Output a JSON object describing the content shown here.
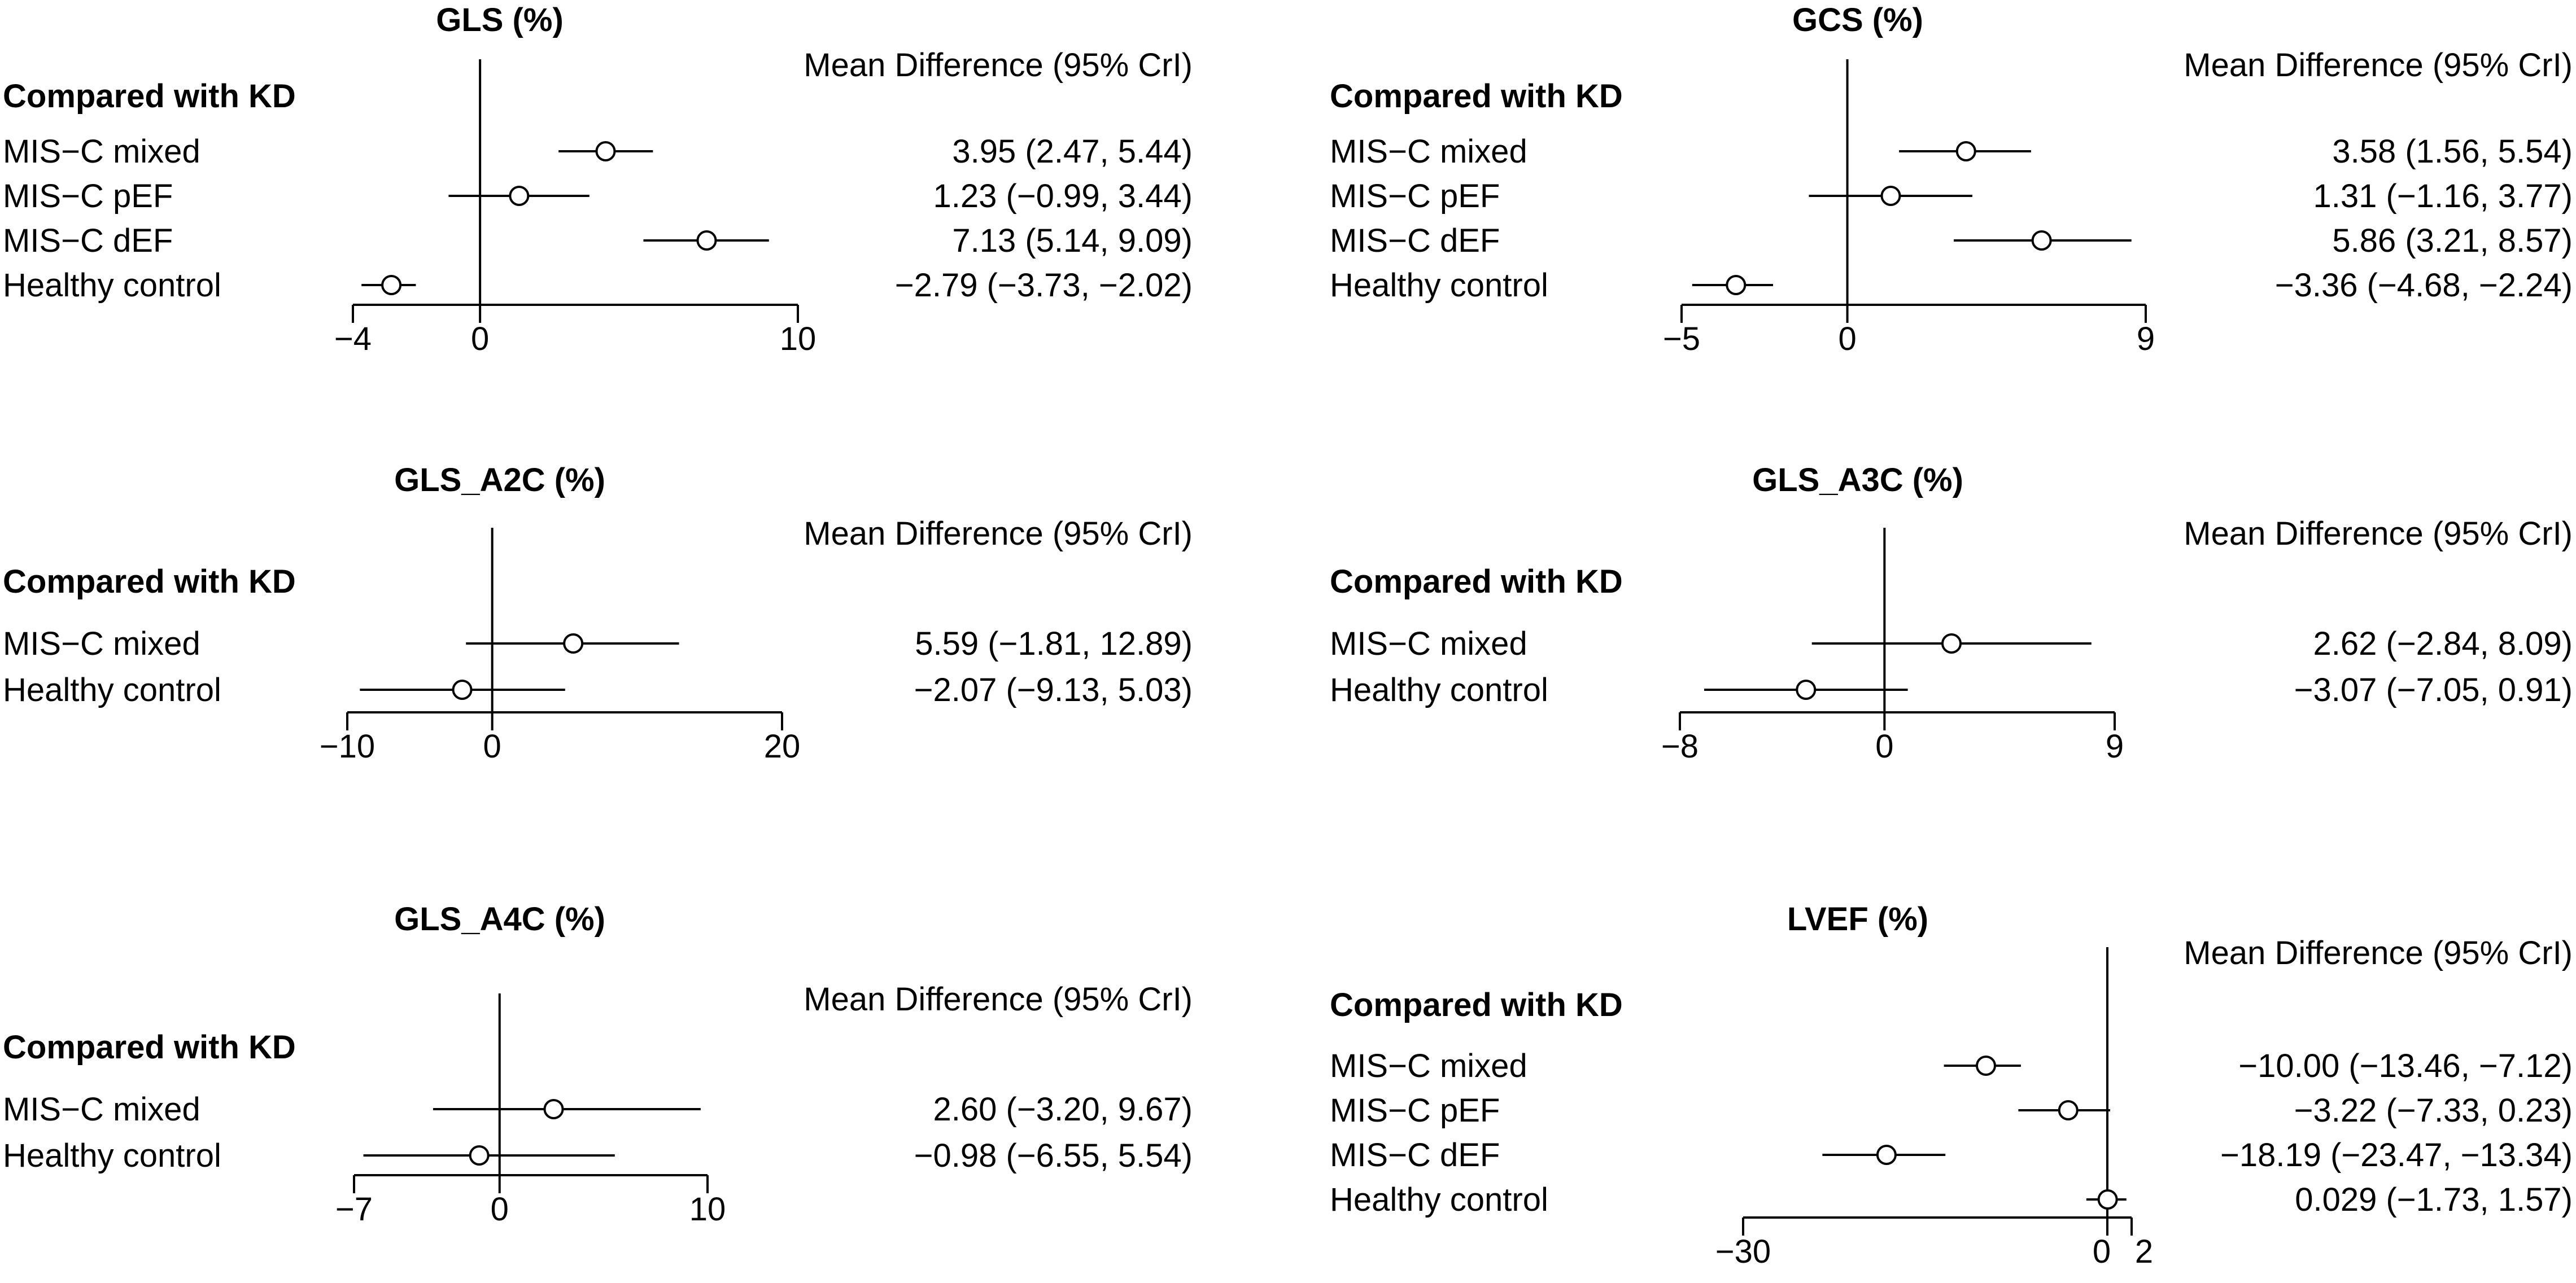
{
  "chart_data": [
    {
      "type": "forest",
      "title": "GLS (%)",
      "value_header": "Mean Difference (95% CrI)",
      "group_heading": "Compared with KD",
      "xlim": [
        -4,
        10
      ],
      "ticks": [
        "−4",
        "0",
        "10"
      ],
      "tick_values": [
        -4,
        0,
        10
      ],
      "rows": [
        {
          "label": "MIS−C mixed",
          "mean": 3.95,
          "lower": 2.47,
          "upper": 5.44,
          "text": "3.95 (2.47, 5.44)"
        },
        {
          "label": "MIS−C pEF",
          "mean": 1.23,
          "lower": -0.99,
          "upper": 3.44,
          "text": "1.23 (−0.99, 3.44)"
        },
        {
          "label": "MIS−C dEF",
          "mean": 7.13,
          "lower": 5.14,
          "upper": 9.09,
          "text": "7.13 (5.14, 9.09)"
        },
        {
          "label": "Healthy control",
          "mean": -2.79,
          "lower": -3.73,
          "upper": -2.02,
          "text": "−2.79 (−3.73, −2.02)"
        }
      ]
    },
    {
      "type": "forest",
      "title": "GCS (%)",
      "value_header": "Mean Difference (95% CrI)",
      "group_heading": "Compared with KD",
      "xlim": [
        -5,
        9
      ],
      "ticks": [
        "−5",
        "0",
        "9"
      ],
      "tick_values": [
        -5,
        0,
        9
      ],
      "rows": [
        {
          "label": "MIS−C mixed",
          "mean": 3.58,
          "lower": 1.56,
          "upper": 5.54,
          "text": "3.58 (1.56, 5.54)"
        },
        {
          "label": "MIS−C pEF",
          "mean": 1.31,
          "lower": -1.16,
          "upper": 3.77,
          "text": "1.31 (−1.16, 3.77)"
        },
        {
          "label": "MIS−C dEF",
          "mean": 5.86,
          "lower": 3.21,
          "upper": 8.57,
          "text": "5.86 (3.21, 8.57)"
        },
        {
          "label": "Healthy control",
          "mean": -3.36,
          "lower": -4.68,
          "upper": -2.24,
          "text": "−3.36 (−4.68, −2.24)"
        }
      ]
    },
    {
      "type": "forest",
      "title": "GLS_A2C (%)",
      "value_header": "Mean Difference (95% CrI)",
      "group_heading": "Compared with KD",
      "xlim": [
        -10,
        20
      ],
      "ticks": [
        "−10",
        "0",
        "20"
      ],
      "tick_values": [
        -10,
        0,
        20
      ],
      "rows": [
        {
          "label": "MIS−C mixed",
          "mean": 5.59,
          "lower": -1.81,
          "upper": 12.89,
          "text": "5.59 (−1.81, 12.89)"
        },
        {
          "label": "Healthy control",
          "mean": -2.07,
          "lower": -9.13,
          "upper": 5.03,
          "text": "−2.07 (−9.13, 5.03)"
        }
      ]
    },
    {
      "type": "forest",
      "title": "GLS_A3C (%)",
      "value_header": "Mean Difference (95% CrI)",
      "group_heading": "Compared with KD",
      "xlim": [
        -8,
        9
      ],
      "ticks": [
        "−8",
        "0",
        "9"
      ],
      "tick_values": [
        -8,
        0,
        9
      ],
      "rows": [
        {
          "label": "MIS−C mixed",
          "mean": 2.62,
          "lower": -2.84,
          "upper": 8.09,
          "text": "2.62 (−2.84, 8.09)"
        },
        {
          "label": "Healthy control",
          "mean": -3.07,
          "lower": -7.05,
          "upper": 0.91,
          "text": "−3.07 (−7.05, 0.91)"
        }
      ]
    },
    {
      "type": "forest",
      "title": "GLS_A4C (%)",
      "value_header": "Mean Difference (95% CrI)",
      "group_heading": "Compared with KD",
      "xlim": [
        -7,
        10
      ],
      "ticks": [
        "−7",
        "0",
        "10"
      ],
      "tick_values": [
        -7,
        0,
        10
      ],
      "rows": [
        {
          "label": "MIS−C mixed",
          "mean": 2.6,
          "lower": -3.2,
          "upper": 9.67,
          "text": "2.60 (−3.20, 9.67)"
        },
        {
          "label": "Healthy control",
          "mean": -0.98,
          "lower": -6.55,
          "upper": 5.54,
          "text": "−0.98 (−6.55, 5.54)"
        }
      ]
    },
    {
      "type": "forest",
      "title": "LVEF (%)",
      "value_header": "Mean Difference (95% CrI)",
      "group_heading": "Compared with KD",
      "xlim": [
        -30,
        2
      ],
      "ticks": [
        "−30",
        "0",
        "2"
      ],
      "tick_values": [
        -30,
        0,
        2
      ],
      "rows": [
        {
          "label": "MIS−C mixed",
          "mean": -10.0,
          "lower": -13.46,
          "upper": -7.12,
          "text": "−10.00 (−13.46, −7.12)"
        },
        {
          "label": "MIS−C pEF",
          "mean": -3.22,
          "lower": -7.33,
          "upper": 0.23,
          "text": "−3.22 (−7.33, 0.23)"
        },
        {
          "label": "MIS−C dEF",
          "mean": -18.19,
          "lower": -23.47,
          "upper": -13.34,
          "text": "−18.19 (−23.47, −13.34)"
        },
        {
          "label": "Healthy control",
          "mean": 0.029,
          "lower": -1.73,
          "upper": 1.57,
          "text": "0.029 (−1.73, 1.57)"
        }
      ]
    }
  ]
}
